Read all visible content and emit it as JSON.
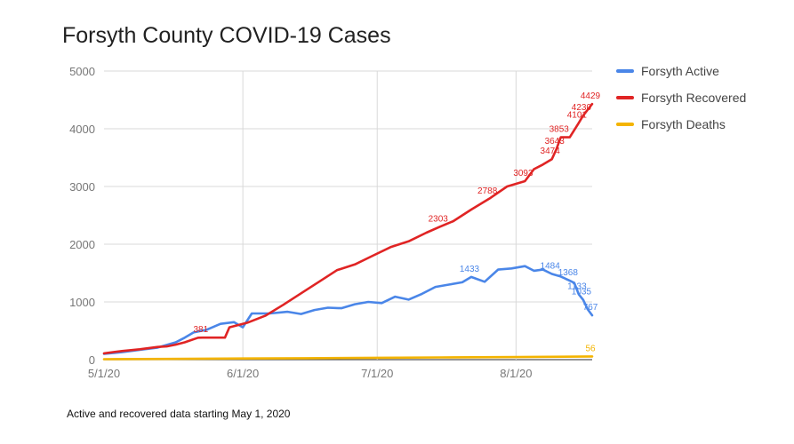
{
  "chart_data": {
    "type": "line",
    "title": "Forsyth County COVID-19 Cases",
    "footnote": "Active and recovered data starting May 1, 2020",
    "xlabel": "",
    "ylabel": "",
    "x_start": "2020-05-01",
    "x_ticks": [
      {
        "date": "2020-05-01",
        "label": "5/1/20"
      },
      {
        "date": "2020-06-01",
        "label": "6/1/20"
      },
      {
        "date": "2020-07-01",
        "label": "7/1/20"
      },
      {
        "date": "2020-08-01",
        "label": "8/1/20"
      }
    ],
    "x_range": [
      "2020-05-01",
      "2020-08-18"
    ],
    "ylim": [
      0,
      5000
    ],
    "y_ticks": [
      0,
      1000,
      2000,
      3000,
      4000,
      5000
    ],
    "grid": true,
    "legend_position": "right",
    "series": [
      {
        "name": "Forsyth Active",
        "color": "#4a86e8",
        "points": [
          [
            "2020-05-01",
            100
          ],
          [
            "2020-05-05",
            130
          ],
          [
            "2020-05-09",
            170
          ],
          [
            "2020-05-13",
            210
          ],
          [
            "2020-05-17",
            300
          ],
          [
            "2020-05-19",
            380
          ],
          [
            "2020-05-21",
            470
          ],
          [
            "2020-05-24",
            520
          ],
          [
            "2020-05-27",
            620
          ],
          [
            "2020-05-30",
            650
          ],
          [
            "2020-06-01",
            560
          ],
          [
            "2020-06-03",
            800
          ],
          [
            "2020-06-07",
            800
          ],
          [
            "2020-06-11",
            830
          ],
          [
            "2020-06-14",
            790
          ],
          [
            "2020-06-17",
            860
          ],
          [
            "2020-06-20",
            900
          ],
          [
            "2020-06-23",
            890
          ],
          [
            "2020-06-26",
            960
          ],
          [
            "2020-06-29",
            1000
          ],
          [
            "2020-07-02",
            980
          ],
          [
            "2020-07-05",
            1090
          ],
          [
            "2020-07-08",
            1040
          ],
          [
            "2020-07-11",
            1140
          ],
          [
            "2020-07-14",
            1260
          ],
          [
            "2020-07-17",
            1300
          ],
          [
            "2020-07-20",
            1340
          ],
          [
            "2020-07-22",
            1433
          ],
          [
            "2020-07-25",
            1350
          ],
          [
            "2020-07-28",
            1560
          ],
          [
            "2020-07-31",
            1580
          ],
          [
            "2020-08-03",
            1620
          ],
          [
            "2020-08-05",
            1540
          ],
          [
            "2020-08-07",
            1560
          ],
          [
            "2020-08-09",
            1484
          ],
          [
            "2020-08-11",
            1440
          ],
          [
            "2020-08-13",
            1368
          ],
          [
            "2020-08-14",
            1330
          ],
          [
            "2020-08-15",
            1133
          ],
          [
            "2020-08-16",
            1035
          ],
          [
            "2020-08-17",
            870
          ],
          [
            "2020-08-18",
            767
          ]
        ]
      },
      {
        "name": "Forsyth Recovered",
        "color": "#e02424",
        "points": [
          [
            "2020-05-01",
            110
          ],
          [
            "2020-05-05",
            150
          ],
          [
            "2020-05-09",
            180
          ],
          [
            "2020-05-13",
            220
          ],
          [
            "2020-05-15",
            230
          ],
          [
            "2020-05-17",
            260
          ],
          [
            "2020-05-19",
            300
          ],
          [
            "2020-05-22",
            380
          ],
          [
            "2020-05-23",
            381
          ],
          [
            "2020-05-28",
            381
          ],
          [
            "2020-05-29",
            560
          ],
          [
            "2020-06-02",
            640
          ],
          [
            "2020-06-06",
            760
          ],
          [
            "2020-06-10",
            950
          ],
          [
            "2020-06-14",
            1150
          ],
          [
            "2020-06-18",
            1350
          ],
          [
            "2020-06-22",
            1550
          ],
          [
            "2020-06-26",
            1650
          ],
          [
            "2020-06-30",
            1800
          ],
          [
            "2020-07-04",
            1950
          ],
          [
            "2020-07-08",
            2050
          ],
          [
            "2020-07-12",
            2200
          ],
          [
            "2020-07-15",
            2303
          ],
          [
            "2020-07-18",
            2400
          ],
          [
            "2020-07-22",
            2600
          ],
          [
            "2020-07-26",
            2788
          ],
          [
            "2020-07-30",
            3000
          ],
          [
            "2020-08-03",
            3093
          ],
          [
            "2020-08-05",
            3300
          ],
          [
            "2020-08-07",
            3380
          ],
          [
            "2020-08-09",
            3474
          ],
          [
            "2020-08-10",
            3643
          ],
          [
            "2020-08-11",
            3853
          ],
          [
            "2020-08-13",
            3853
          ],
          [
            "2020-08-15",
            4101
          ],
          [
            "2020-08-16",
            4230
          ],
          [
            "2020-08-18",
            4429
          ]
        ]
      },
      {
        "name": "Forsyth Deaths",
        "color": "#f4b400",
        "points": [
          [
            "2020-05-01",
            8
          ],
          [
            "2020-05-15",
            12
          ],
          [
            "2020-06-01",
            20
          ],
          [
            "2020-06-15",
            25
          ],
          [
            "2020-07-01",
            33
          ],
          [
            "2020-07-15",
            38
          ],
          [
            "2020-08-01",
            45
          ],
          [
            "2020-08-18",
            56
          ]
        ]
      }
    ],
    "data_labels": [
      {
        "series": 1,
        "date": "2020-05-23",
        "text": "381"
      },
      {
        "series": 1,
        "date": "2020-07-15",
        "text": "2303"
      },
      {
        "series": 1,
        "date": "2020-07-26",
        "text": "2788"
      },
      {
        "series": 1,
        "date": "2020-08-03",
        "text": "3093"
      },
      {
        "series": 1,
        "date": "2020-08-09",
        "text": "3474"
      },
      {
        "series": 1,
        "date": "2020-08-10",
        "text": "3643"
      },
      {
        "series": 1,
        "date": "2020-08-11",
        "text": "3853"
      },
      {
        "series": 1,
        "date": "2020-08-15",
        "text": "4101"
      },
      {
        "series": 1,
        "date": "2020-08-16",
        "text": "4230"
      },
      {
        "series": 1,
        "date": "2020-08-18",
        "text": "4429"
      },
      {
        "series": 0,
        "date": "2020-07-22",
        "text": "1433"
      },
      {
        "series": 0,
        "date": "2020-08-09",
        "text": "1484"
      },
      {
        "series": 0,
        "date": "2020-08-13",
        "text": "1368"
      },
      {
        "series": 0,
        "date": "2020-08-15",
        "text": "1133"
      },
      {
        "series": 0,
        "date": "2020-08-16",
        "text": "1035"
      },
      {
        "series": 0,
        "date": "2020-08-18",
        "text": "767"
      },
      {
        "series": 2,
        "date": "2020-08-18",
        "text": "56"
      }
    ]
  }
}
